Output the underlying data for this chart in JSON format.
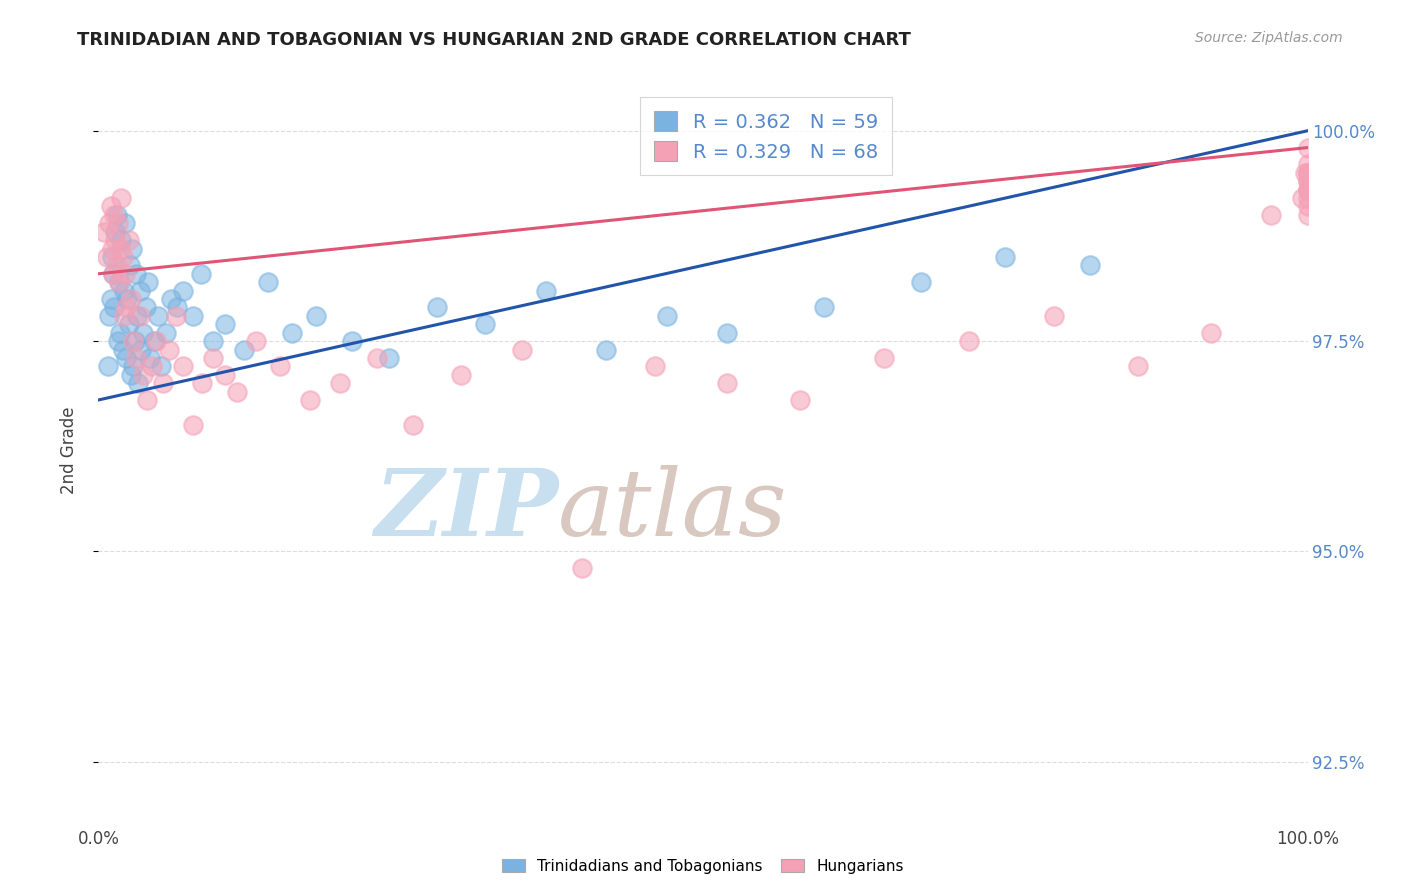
{
  "title": "TRINIDADIAN AND TOBAGONIAN VS HUNGARIAN 2ND GRADE CORRELATION CHART",
  "source": "Source: ZipAtlas.com",
  "ylabel": "2nd Grade",
  "xmin": 0.0,
  "xmax": 100.0,
  "ymin": 91.8,
  "ymax": 100.6,
  "yticks": [
    92.5,
    95.0,
    97.5,
    100.0
  ],
  "xticks": [
    0.0,
    100.0
  ],
  "blue_R": 0.362,
  "blue_N": 59,
  "pink_R": 0.329,
  "pink_N": 68,
  "blue_color": "#7ab3e0",
  "pink_color": "#f4a0b5",
  "blue_line_color": "#2255aa",
  "pink_line_color": "#e05575",
  "background_color": "#ffffff",
  "grid_color": "#dddddd",
  "watermark_zip_color": "#c8dff0",
  "watermark_atlas_color": "#d8c8c0",
  "legend_text_color": "#5588cc",
  "blue_x": [
    0.8,
    0.9,
    1.0,
    1.1,
    1.2,
    1.3,
    1.4,
    1.5,
    1.6,
    1.7,
    1.8,
    1.9,
    2.0,
    2.1,
    2.2,
    2.3,
    2.4,
    2.5,
    2.6,
    2.7,
    2.8,
    2.9,
    3.0,
    3.1,
    3.2,
    3.3,
    3.4,
    3.5,
    3.7,
    3.9,
    4.1,
    4.3,
    4.6,
    4.9,
    5.2,
    5.6,
    6.0,
    6.5,
    7.0,
    7.8,
    8.5,
    9.5,
    10.5,
    12.0,
    14.0,
    16.0,
    18.0,
    21.0,
    24.0,
    28.0,
    32.0,
    37.0,
    42.0,
    47.0,
    52.0,
    60.0,
    68.0,
    75.0,
    82.0
  ],
  "blue_y": [
    97.2,
    97.8,
    98.0,
    98.5,
    98.3,
    97.9,
    98.8,
    99.0,
    97.5,
    98.2,
    97.6,
    98.7,
    97.4,
    98.1,
    98.9,
    97.3,
    98.0,
    97.7,
    98.4,
    97.1,
    98.6,
    97.2,
    97.5,
    98.3,
    97.8,
    97.0,
    98.1,
    97.4,
    97.6,
    97.9,
    98.2,
    97.3,
    97.5,
    97.8,
    97.2,
    97.6,
    98.0,
    97.9,
    98.1,
    97.8,
    98.3,
    97.5,
    97.7,
    97.4,
    98.2,
    97.6,
    97.8,
    97.5,
    97.3,
    97.9,
    97.7,
    98.1,
    97.4,
    97.8,
    97.6,
    97.9,
    98.2,
    98.5,
    98.4
  ],
  "pink_x": [
    0.5,
    0.7,
    0.9,
    1.0,
    1.1,
    1.2,
    1.3,
    1.4,
    1.5,
    1.6,
    1.7,
    1.8,
    1.9,
    2.0,
    2.1,
    2.2,
    2.3,
    2.5,
    2.7,
    2.9,
    3.1,
    3.4,
    3.7,
    4.0,
    4.4,
    4.8,
    5.3,
    5.8,
    6.4,
    7.0,
    7.8,
    8.6,
    9.5,
    10.5,
    11.5,
    13.0,
    15.0,
    17.5,
    20.0,
    23.0,
    26.0,
    30.0,
    35.0,
    40.0,
    46.0,
    52.0,
    58.0,
    65.0,
    72.0,
    79.0,
    86.0,
    92.0,
    97.0,
    99.5,
    99.8,
    100.0,
    100.0,
    100.0,
    100.0,
    100.0,
    100.0,
    100.0,
    100.0,
    100.0,
    100.0,
    100.0,
    100.0,
    100.0
  ],
  "pink_y": [
    98.8,
    98.5,
    98.9,
    99.1,
    98.6,
    98.3,
    99.0,
    98.7,
    98.4,
    98.9,
    98.2,
    98.6,
    99.2,
    98.5,
    97.8,
    98.3,
    97.9,
    98.7,
    98.0,
    97.5,
    97.3,
    97.8,
    97.1,
    96.8,
    97.2,
    97.5,
    97.0,
    97.4,
    97.8,
    97.2,
    96.5,
    97.0,
    97.3,
    97.1,
    96.9,
    97.5,
    97.2,
    96.8,
    97.0,
    97.3,
    96.5,
    97.1,
    97.4,
    94.8,
    97.2,
    97.0,
    96.8,
    97.3,
    97.5,
    97.8,
    97.2,
    97.6,
    99.0,
    99.2,
    99.5,
    99.8,
    99.5,
    99.3,
    99.6,
    99.4,
    99.2,
    99.5,
    99.3,
    99.0,
    99.4,
    99.1,
    99.3,
    99.5
  ],
  "blue_line_x0": 0.0,
  "blue_line_y0": 96.8,
  "blue_line_x1": 100.0,
  "blue_line_y1": 100.0,
  "pink_line_x0": 0.0,
  "pink_line_y0": 98.3,
  "pink_line_x1": 100.0,
  "pink_line_y1": 99.8
}
